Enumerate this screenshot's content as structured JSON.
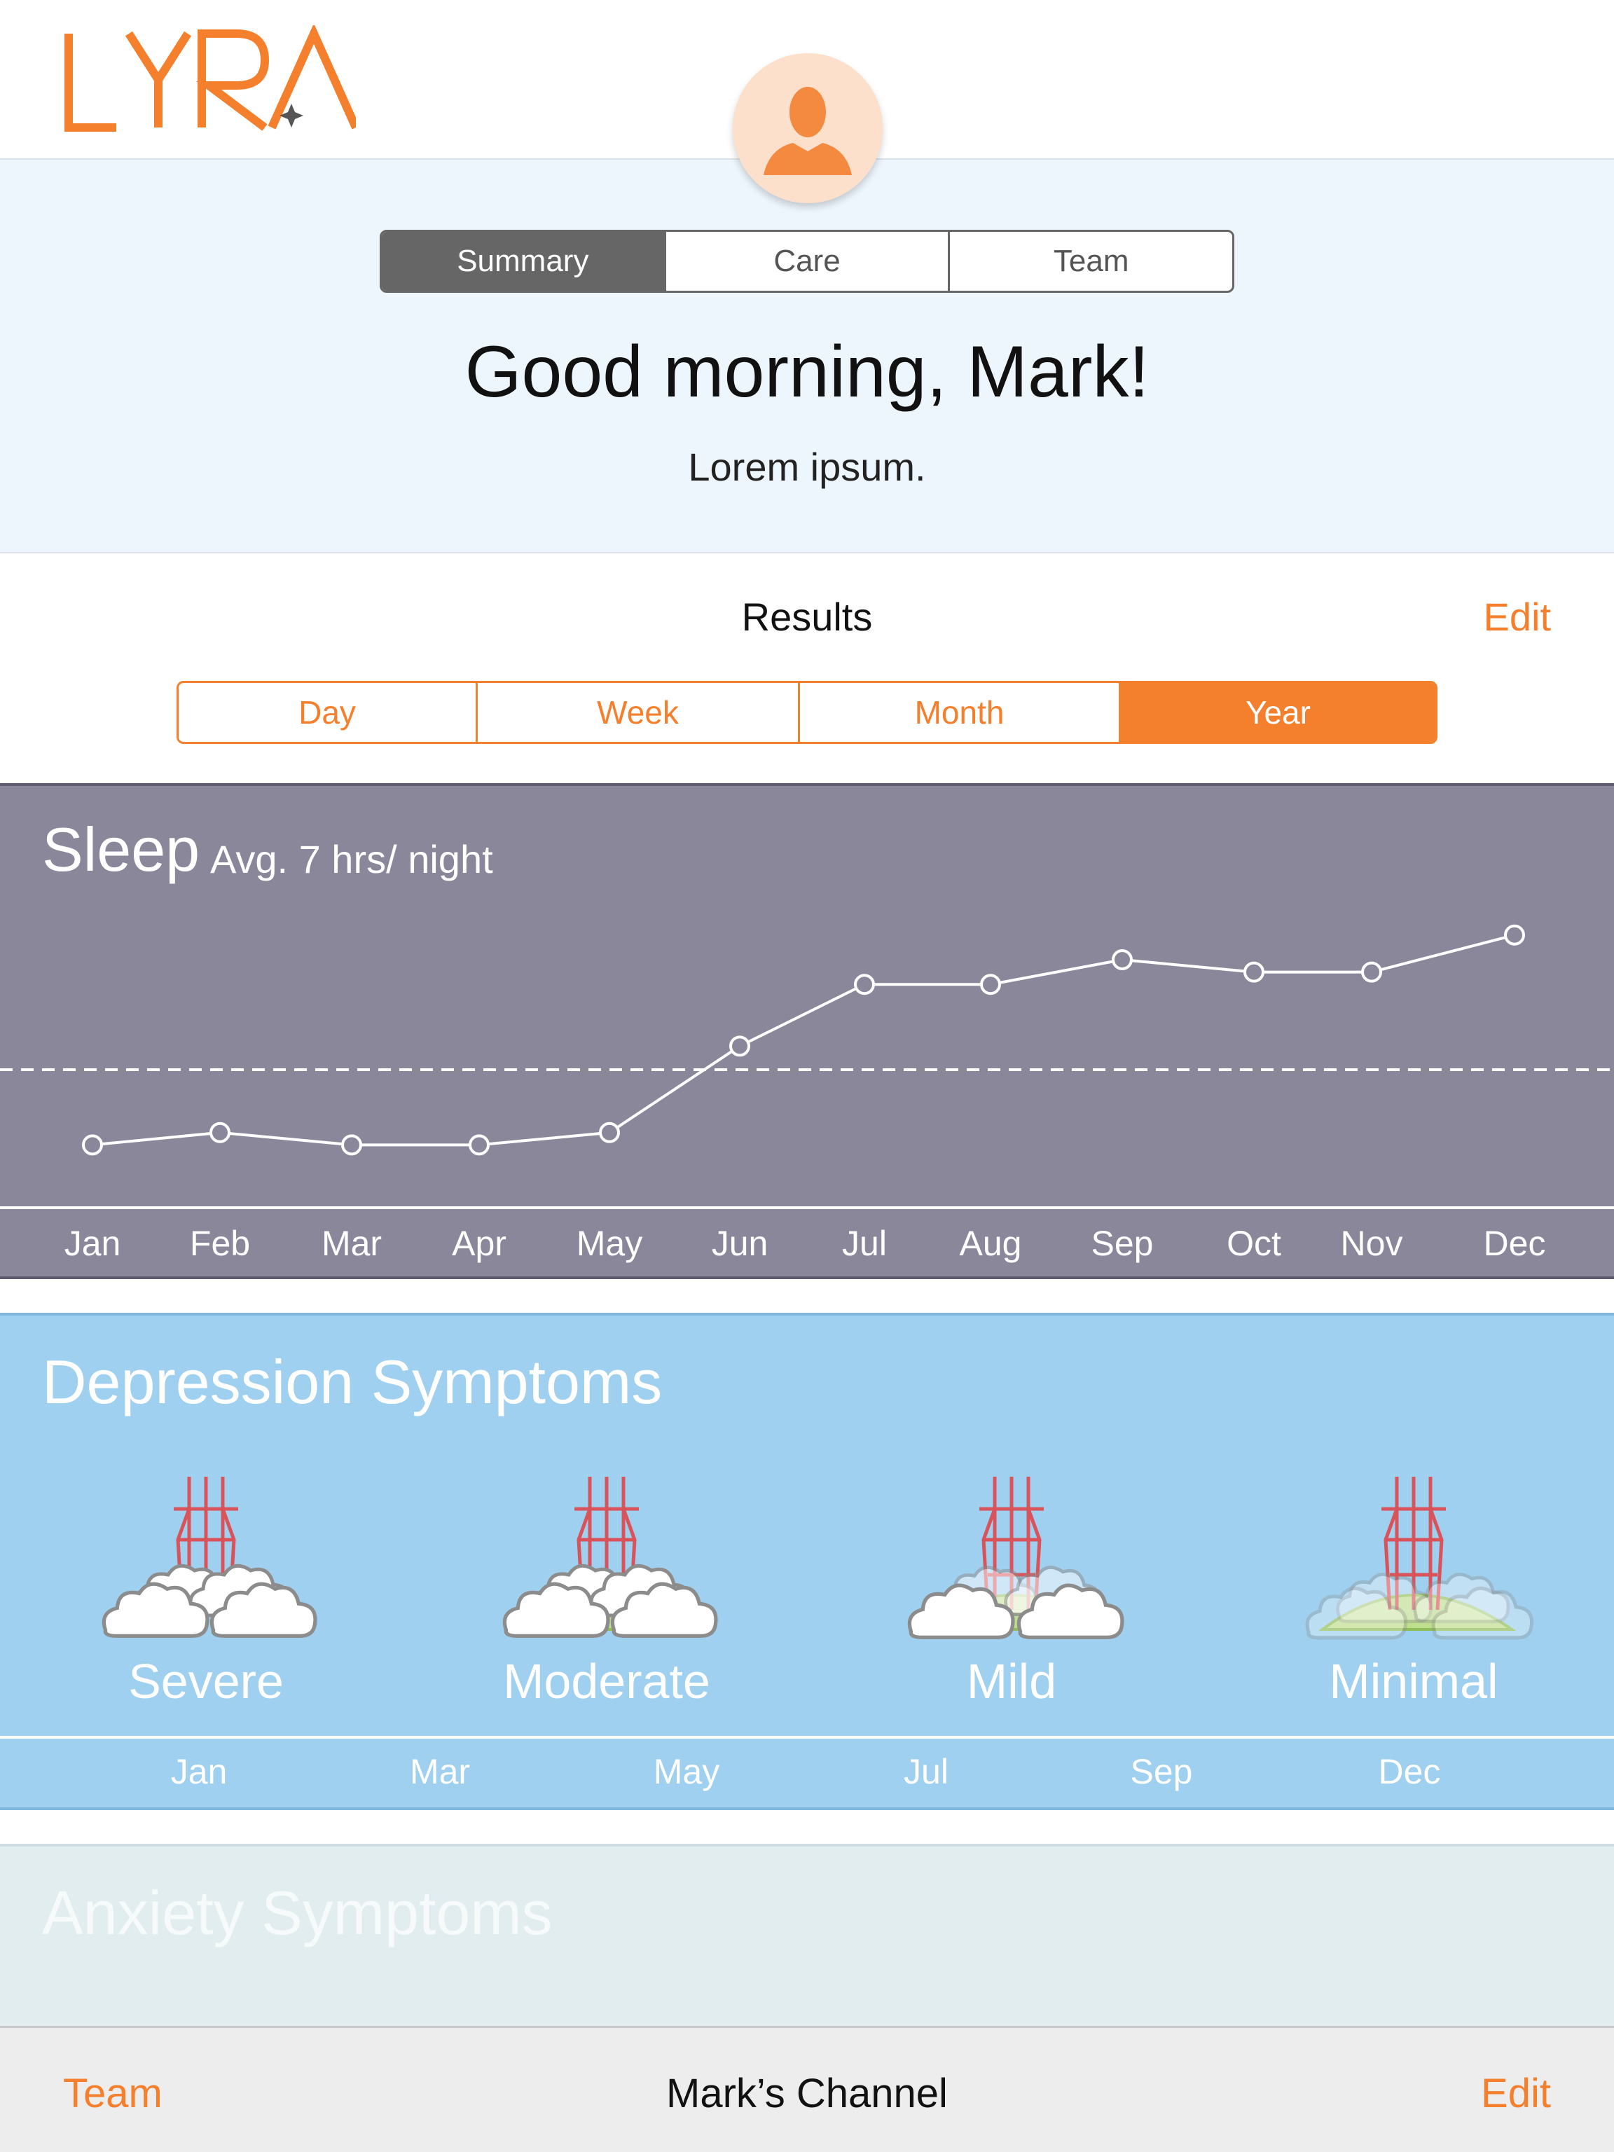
{
  "brand": {
    "logo_text": "LYRA",
    "accent": "#f47f2c"
  },
  "header": {
    "tabs": [
      {
        "label": "Summary",
        "active": true
      },
      {
        "label": "Care",
        "active": false
      },
      {
        "label": "Team",
        "active": false
      }
    ],
    "greeting": "Good morning, Mark!",
    "subtitle": "Lorem ipsum."
  },
  "results": {
    "title": "Results",
    "edit_label": "Edit",
    "ranges": [
      {
        "label": "Day",
        "active": false
      },
      {
        "label": "Week",
        "active": false
      },
      {
        "label": "Month",
        "active": false
      },
      {
        "label": "Year",
        "active": true
      }
    ]
  },
  "sleep": {
    "title": "Sleep",
    "average": "Avg. 7 hrs/ night"
  },
  "chart_data": {
    "type": "line",
    "title": "Sleep",
    "subtitle": "Avg. 7 hrs/ night",
    "categories": [
      "Jan",
      "Feb",
      "Mar",
      "Apr",
      "May",
      "Jun",
      "Jul",
      "Aug",
      "Sep",
      "Oct",
      "Nov",
      "Dec"
    ],
    "values": [
      5.2,
      5.4,
      5.2,
      5.2,
      5.4,
      6.8,
      7.8,
      7.8,
      8.2,
      8.0,
      8.0,
      8.6
    ],
    "reference_line": 7,
    "ylim": [
      5,
      9
    ],
    "grid": false,
    "background": "#8a879b"
  },
  "depression": {
    "title": "Depression Symptoms",
    "levels": [
      {
        "label": "Severe",
        "hill": false,
        "clouds": "heavy"
      },
      {
        "label": "Moderate",
        "hill": true,
        "clouds": "heavy"
      },
      {
        "label": "Mild",
        "hill": true,
        "clouds": "medium"
      },
      {
        "label": "Minimal",
        "hill": true,
        "clouds": "light"
      }
    ],
    "months": [
      "Jan",
      "Mar",
      "May",
      "Jul",
      "Sep",
      "Dec"
    ]
  },
  "anxiety": {
    "title": "Anxiety Symptoms"
  },
  "tabbar": {
    "left": "Team",
    "center": "Mark’s Channel",
    "right": "Edit"
  }
}
